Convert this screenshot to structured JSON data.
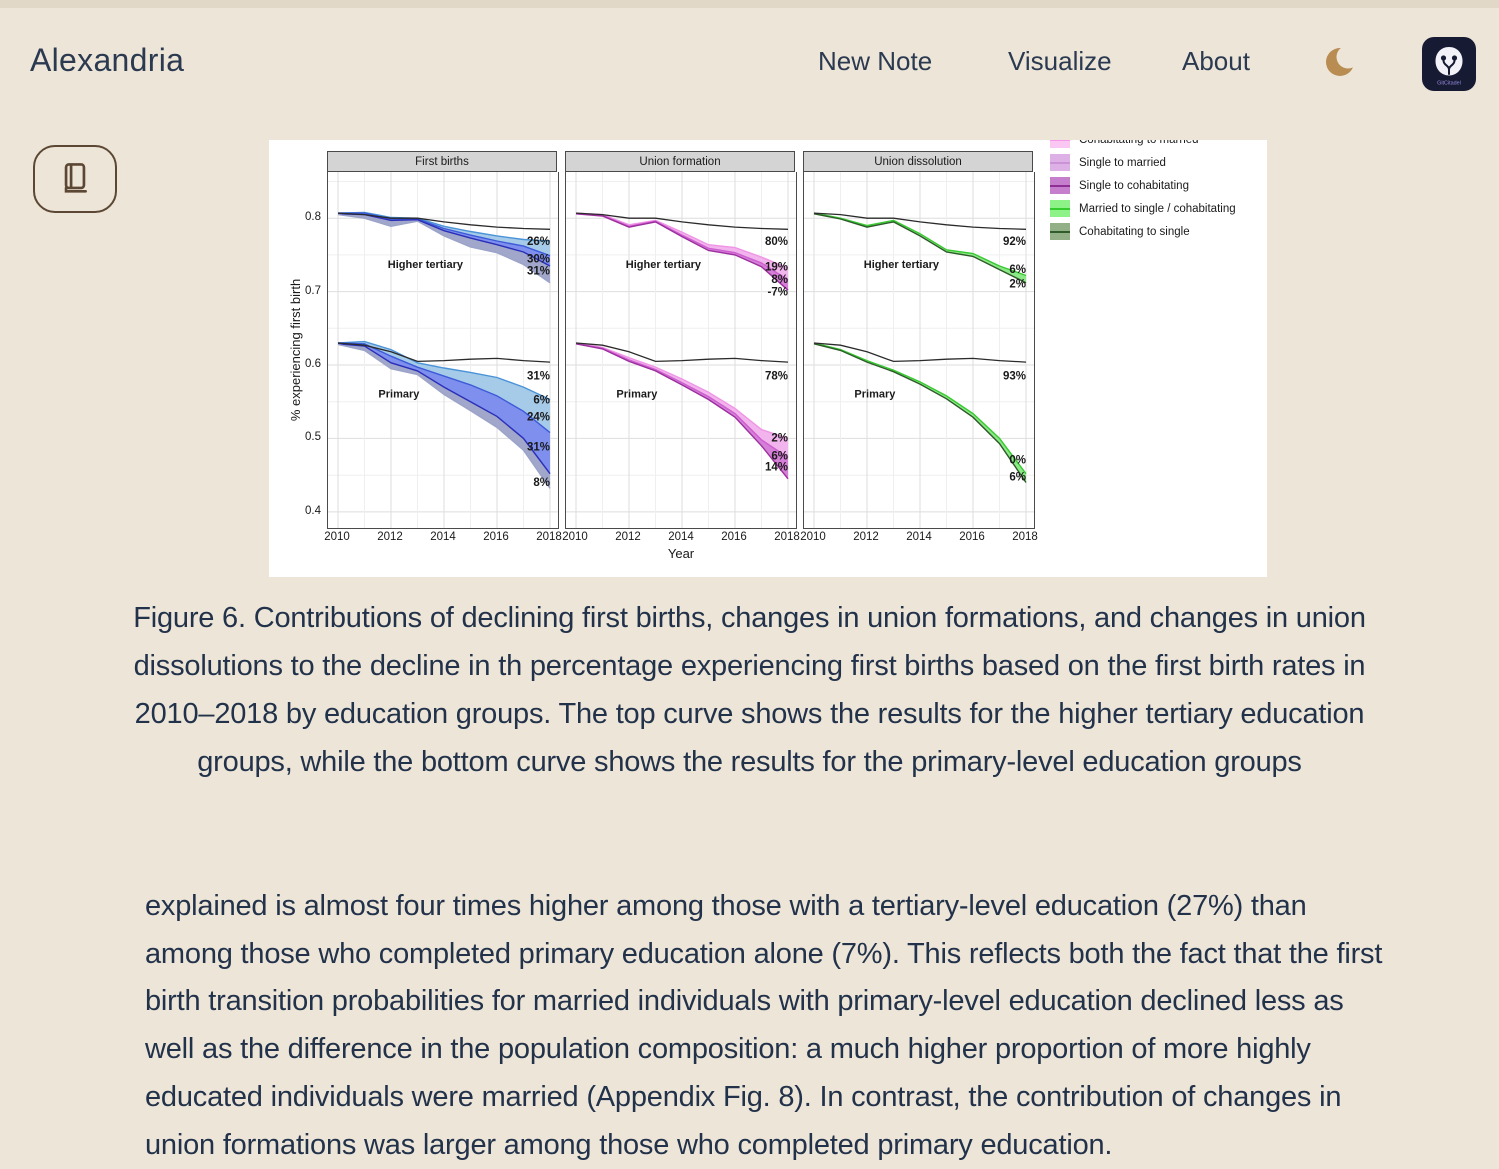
{
  "header": {
    "brand": "Alexandria",
    "nav": [
      {
        "label": "New Note"
      },
      {
        "label": "Visualize"
      },
      {
        "label": "About"
      }
    ],
    "theme_toggle_icon": "moon-icon",
    "logo_text": "GitCitadel"
  },
  "sidebar": {
    "reader_button_icon": "book-icon"
  },
  "caption": {
    "text": "Figure 6. Contributions of declining first births, changes in union formations, and changes in union dissolutions to the decline in th percentage experiencing first births based on the first birth rates in 2010–2018 by education groups. The top curve shows the results for the higher tertiary education groups, while the bottom curve shows the results for the primary-level education groups"
  },
  "body": {
    "paragraph": "explained is almost four times higher among those with a tertiary-level education (27%) than among those who completed primary education alone (7%). This reflects both the fact that the first birth transition probabilities for married individuals with primary-level education declined less as well as the difference in the population composition: a much higher proportion of more highly educated individuals were married (Appendix Fig. 8). In contrast, the contribution of changes in union formations was larger among those who completed primary education."
  },
  "colors": {
    "background": "#ede5d8",
    "ink": "#26364c",
    "brown_accent": "#5b4733",
    "moon_gold": "#b98c52",
    "logo_bg": "#161b33",
    "logo_text": "#9b8ce0",
    "chart_bg": "#ffffff"
  },
  "chart_data": {
    "type": "line",
    "title": "",
    "xlabel": "Year",
    "ylabel": "% experiencing first birth",
    "x": [
      2010,
      2011,
      2012,
      2013,
      2014,
      2015,
      2016,
      2017,
      2018
    ],
    "xticks": [
      2010,
      2012,
      2014,
      2016,
      2018
    ],
    "yticks": [
      0.8,
      0.7,
      0.6,
      0.5,
      0.4
    ],
    "ylim": [
      0.378,
      0.863
    ],
    "grid": true,
    "legend_position": "top-right, first entry clipped by card edge",
    "legend": [
      {
        "label": "Cohabitating to married",
        "fill": "#f9c7f2",
        "line": "#f795ea"
      },
      {
        "label": "Single to married",
        "fill": "#ddb0e6",
        "line": "#cb92d8"
      },
      {
        "label": "Single to cohabitating",
        "fill": "#c57fcc",
        "line": "#8f2f96"
      },
      {
        "label": "Married to single / cohabitating",
        "fill": "#8df287",
        "line": "#35cc30"
      },
      {
        "label": "Cohabitating to single",
        "fill": "#93af88",
        "line": "#2f5c2b"
      }
    ],
    "panels": [
      {
        "title": "First births",
        "groups": [
          {
            "label": "Higher tertiary",
            "label_pos": [
              2013.3,
              0.732
            ],
            "reference": [
              0.807,
              0.805,
              0.8,
              0.8,
              0.795,
              0.791,
              0.788,
              0.786,
              0.785
            ],
            "layers": [
              {
                "line": "#4a93d8",
                "fill": null,
                "values": [
                  0.807,
                  0.808,
                  0.801,
                  0.8,
                  0.789,
                  0.782,
                  0.776,
                  0.771,
                  0.769
                ]
              },
              {
                "line": "#3d5bd8",
                "fill": "#a6cbe9",
                "values": [
                  0.807,
                  0.807,
                  0.799,
                  0.799,
                  0.786,
                  0.777,
                  0.769,
                  0.762,
                  0.749
                ]
              },
              {
                "line": "#2a2fb8",
                "fill": "#7f8fee",
                "values": [
                  0.806,
                  0.805,
                  0.797,
                  0.798,
                  0.783,
                  0.773,
                  0.764,
                  0.754,
                  0.735
                ]
              },
              {
                "line": "#9ba3c9",
                "fill": "#a0a7cb",
                "values": [
                  0.805,
                  0.8,
                  0.789,
                  0.796,
                  0.776,
                  0.761,
                  0.753,
                  0.737,
                  0.712
                ]
              }
            ],
            "annotations": [
              {
                "text": "26%",
                "v": 0.769
              },
              {
                "text": "30%",
                "v": 0.745
              },
              {
                "text": "31%",
                "v": 0.729
              }
            ]
          },
          {
            "label": "Primary",
            "label_pos": [
              2012.3,
              0.556
            ],
            "reference": [
              0.63,
              0.627,
              0.618,
              0.605,
              0.606,
              0.608,
              0.609,
              0.606,
              0.604
            ],
            "layers": [
              {
                "line": "#4a93d8",
                "fill": null,
                "values": [
                  0.63,
                  0.632,
                  0.621,
                  0.603,
                  0.596,
                  0.59,
                  0.583,
                  0.57,
                  0.553
                ]
              },
              {
                "line": "#3d5bd8",
                "fill": "#a6cbe9",
                "values": [
                  0.63,
                  0.629,
                  0.612,
                  0.597,
                  0.585,
                  0.573,
                  0.558,
                  0.537,
                  0.508
                ]
              },
              {
                "line": "#2a2fb8",
                "fill": "#7f8fee",
                "values": [
                  0.629,
                  0.626,
                  0.603,
                  0.592,
                  0.57,
                  0.55,
                  0.53,
                  0.5,
                  0.452
                ]
              },
              {
                "line": "#9ba3c9",
                "fill": "#a0a7cb",
                "values": [
                  0.628,
                  0.62,
                  0.595,
                  0.587,
                  0.56,
                  0.538,
                  0.515,
                  0.484,
                  0.432
                ]
              }
            ],
            "annotations": [
              {
                "text": "31%",
                "v": 0.586
              },
              {
                "text": "6%",
                "v": 0.553
              },
              {
                "text": "24%",
                "v": 0.53
              },
              {
                "text": "31%",
                "v": 0.489
              },
              {
                "text": "8%",
                "v": 0.441
              }
            ]
          }
        ]
      },
      {
        "title": "Union formation",
        "groups": [
          {
            "label": "Higher tertiary",
            "label_pos": [
              2013.3,
              0.732
            ],
            "reference": [
              0.807,
              0.805,
              0.8,
              0.8,
              0.795,
              0.791,
              0.788,
              0.786,
              0.785
            ],
            "layers": [
              {
                "line": "#f095e6",
                "fill": null,
                "values": [
                  0.807,
                  0.805,
                  0.791,
                  0.797,
                  0.781,
                  0.764,
                  0.76,
                  0.747,
                  0.732
                ]
              },
              {
                "line": "#cd5fd0",
                "fill": "#f2b4ec",
                "values": [
                  0.806,
                  0.804,
                  0.789,
                  0.796,
                  0.777,
                  0.759,
                  0.753,
                  0.739,
                  0.716
                ]
              },
              {
                "line": "#9c2f9e",
                "fill": "#d67fd8",
                "values": [
                  0.806,
                  0.803,
                  0.788,
                  0.795,
                  0.775,
                  0.756,
                  0.75,
                  0.734,
                  0.702
                ]
              }
            ],
            "annotations": [
              {
                "text": "80%",
                "v": 0.769
              },
              {
                "text": "19%",
                "v": 0.734
              },
              {
                "text": "8%",
                "v": 0.717
              },
              {
                "text": "-7%",
                "v": 0.7
              }
            ]
          },
          {
            "label": "Primary",
            "label_pos": [
              2012.3,
              0.556
            ],
            "reference": [
              0.63,
              0.627,
              0.618,
              0.605,
              0.606,
              0.608,
              0.609,
              0.606,
              0.604
            ],
            "layers": [
              {
                "line": "#f095e6",
                "fill": null,
                "values": [
                  0.63,
                  0.624,
                  0.61,
                  0.597,
                  0.581,
                  0.563,
                  0.541,
                  0.512,
                  0.5
                ]
              },
              {
                "line": "#cd5fd0",
                "fill": "#f2b4ec",
                "values": [
                  0.629,
                  0.623,
                  0.607,
                  0.594,
                  0.576,
                  0.557,
                  0.534,
                  0.498,
                  0.474
                ]
              },
              {
                "line": "#9c2f9e",
                "fill": "#d67fd8",
                "values": [
                  0.629,
                  0.622,
                  0.605,
                  0.592,
                  0.573,
                  0.553,
                  0.529,
                  0.49,
                  0.445
                ]
              }
            ],
            "annotations": [
              {
                "text": "78%",
                "v": 0.586
              },
              {
                "text": "2%",
                "v": 0.501
              },
              {
                "text": "6%",
                "v": 0.477
              },
              {
                "text": "14%",
                "v": 0.462
              }
            ]
          }
        ]
      },
      {
        "title": "Union dissolution",
        "groups": [
          {
            "label": "Higher tertiary",
            "label_pos": [
              2013.3,
              0.732
            ],
            "reference": [
              0.807,
              0.805,
              0.8,
              0.8,
              0.795,
              0.791,
              0.788,
              0.786,
              0.785
            ],
            "layers": [
              {
                "line": "#38c932",
                "fill": null,
                "values": [
                  0.807,
                  0.8,
                  0.79,
                  0.797,
                  0.779,
                  0.757,
                  0.752,
                  0.735,
                  0.722
                ]
              },
              {
                "line": "#2d5b28",
                "fill": "#8ce987",
                "values": [
                  0.806,
                  0.799,
                  0.788,
                  0.795,
                  0.776,
                  0.754,
                  0.748,
                  0.73,
                  0.712
                ]
              }
            ],
            "annotations": [
              {
                "text": "92%",
                "v": 0.769
              },
              {
                "text": "6%",
                "v": 0.731
              },
              {
                "text": "2%",
                "v": 0.711
              }
            ]
          },
          {
            "label": "Primary",
            "label_pos": [
              2012.3,
              0.556
            ],
            "reference": [
              0.63,
              0.627,
              0.618,
              0.605,
              0.606,
              0.608,
              0.609,
              0.606,
              0.604
            ],
            "layers": [
              {
                "line": "#38c932",
                "fill": null,
                "values": [
                  0.63,
                  0.621,
                  0.606,
                  0.593,
                  0.577,
                  0.558,
                  0.534,
                  0.5,
                  0.452
                ]
              },
              {
                "line": "#2d5b28",
                "fill": "#8ce987",
                "values": [
                  0.629,
                  0.62,
                  0.604,
                  0.591,
                  0.574,
                  0.554,
                  0.529,
                  0.493,
                  0.44
                ]
              }
            ],
            "annotations": [
              {
                "text": "93%",
                "v": 0.586
              },
              {
                "text": "0%",
                "v": 0.471
              },
              {
                "text": "6%",
                "v": 0.448
              }
            ]
          }
        ]
      }
    ]
  }
}
